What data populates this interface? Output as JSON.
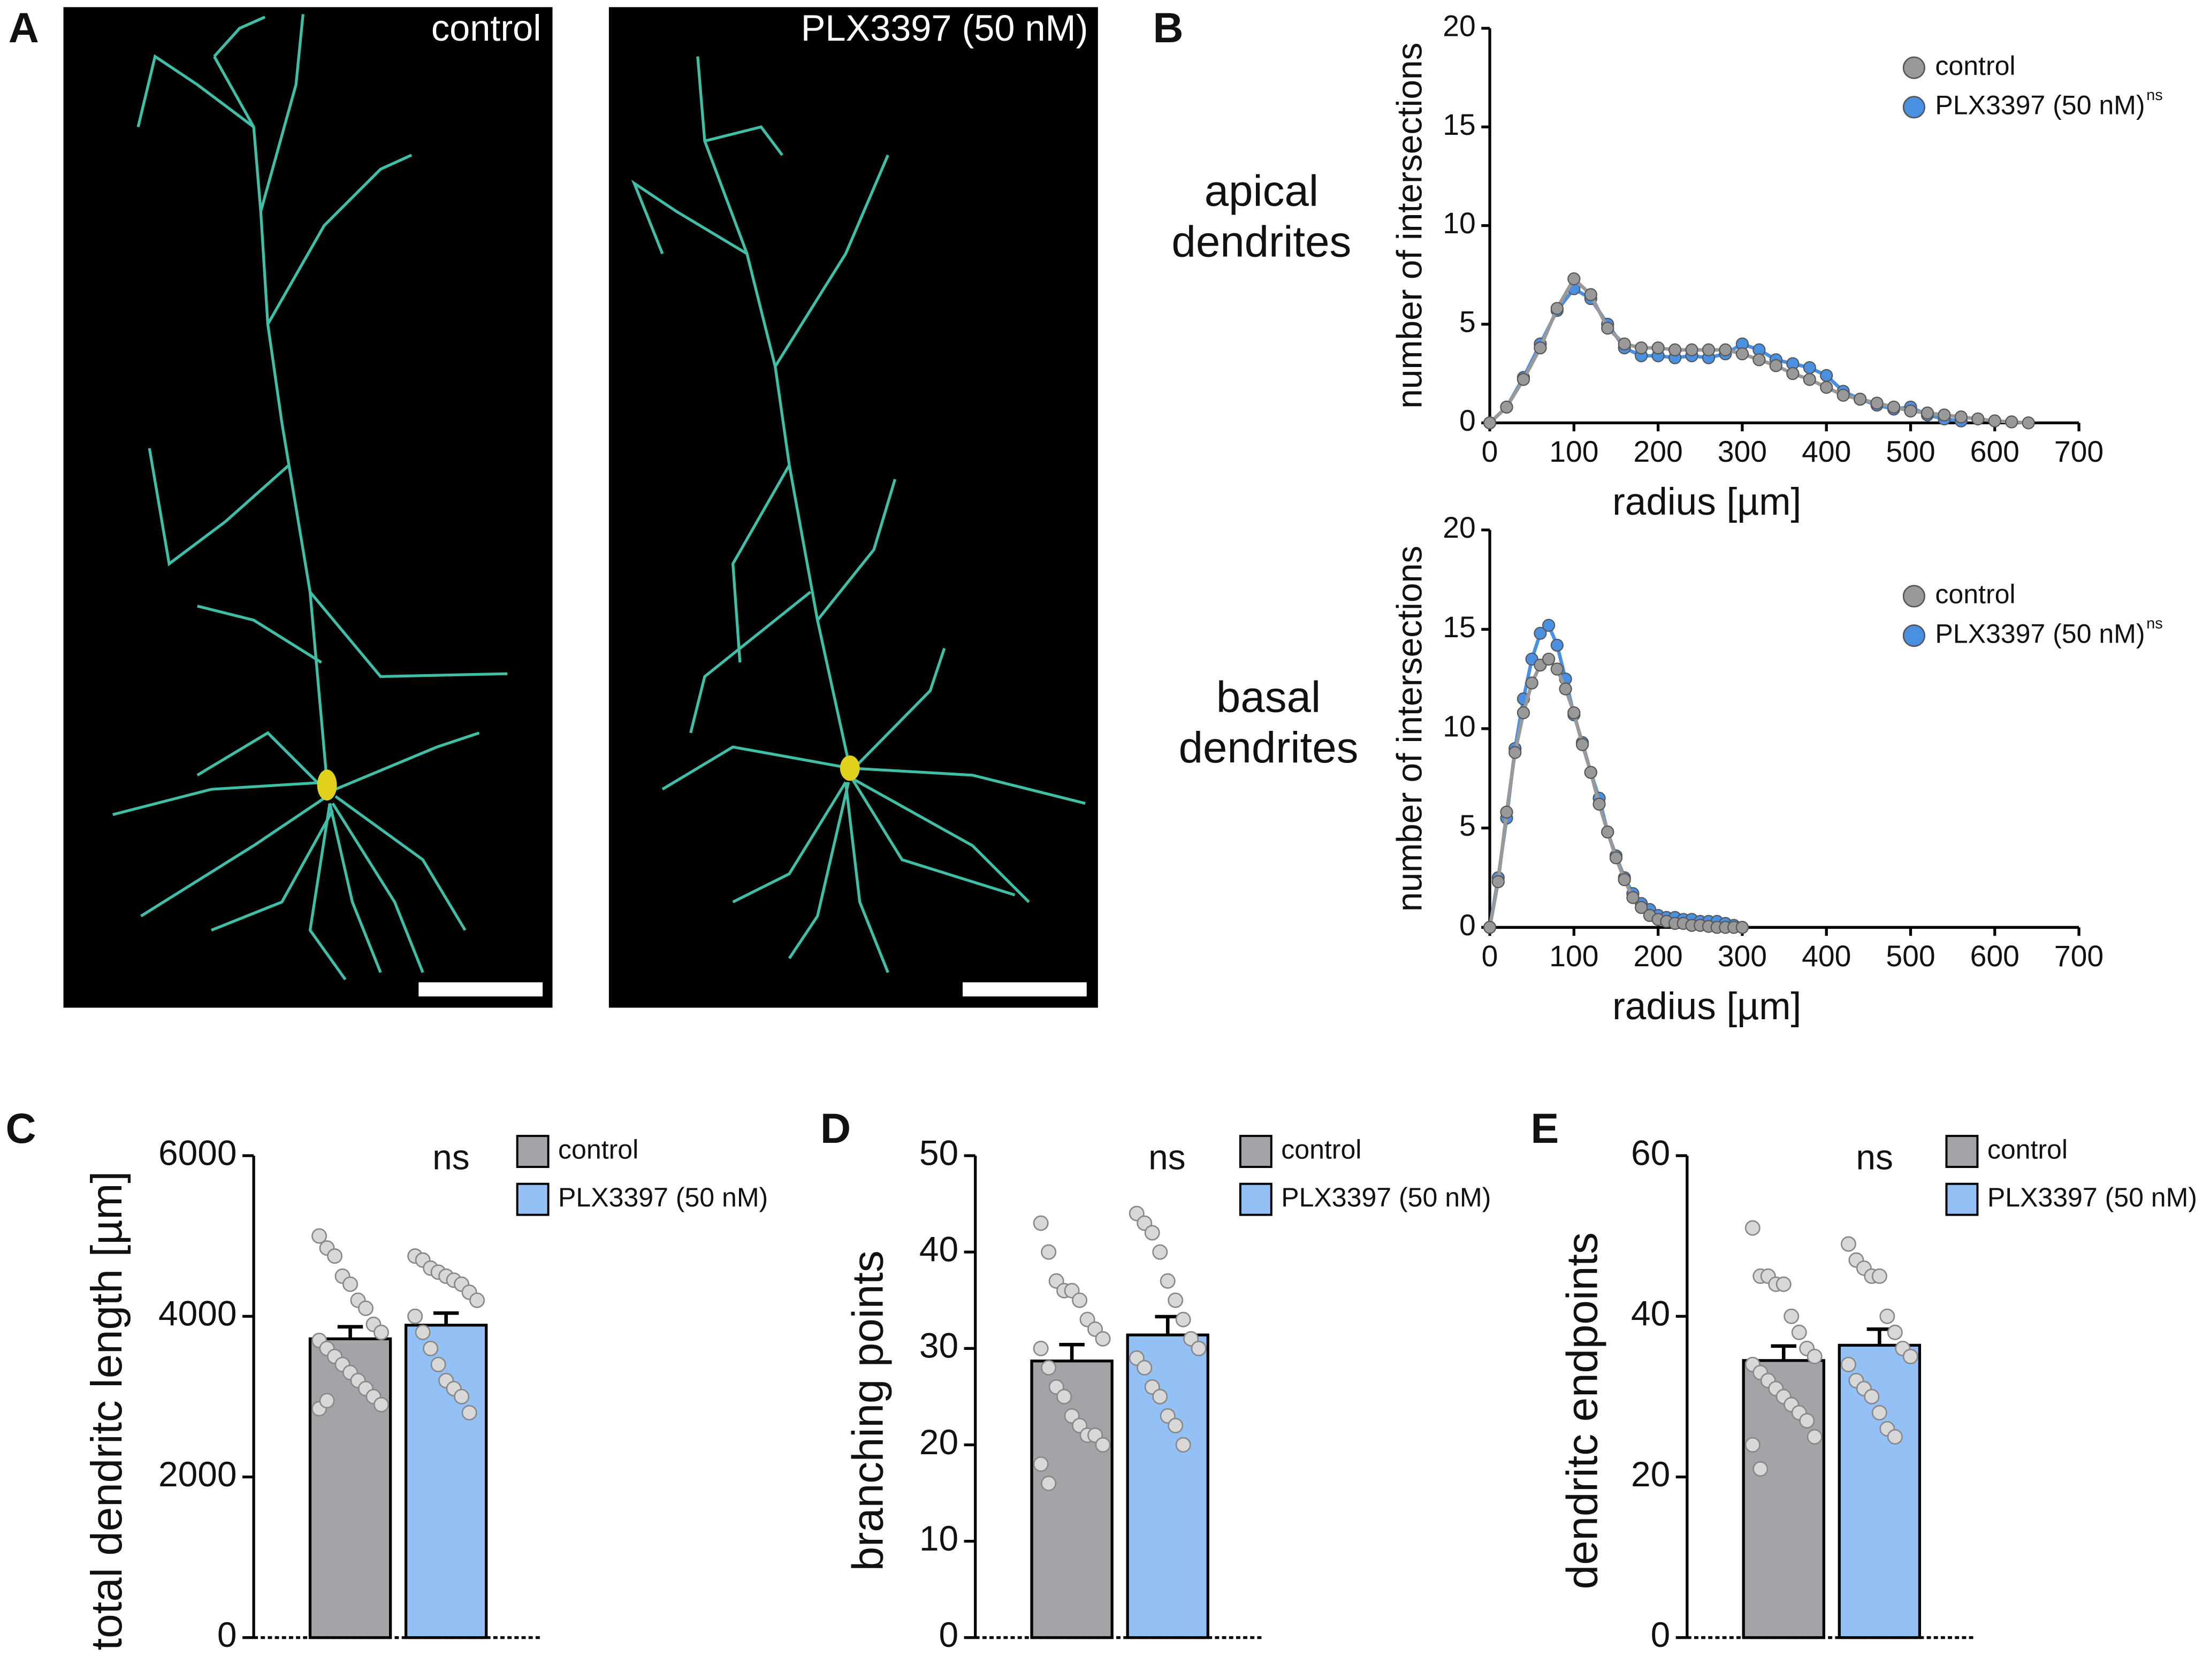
{
  "panel_labels": [
    "A",
    "B",
    "C",
    "D",
    "E"
  ],
  "images": [
    {
      "label": "control"
    },
    {
      "label": "PLX3397 (50 nM)"
    }
  ],
  "chart_data": [
    {
      "type": "line",
      "title": "apical dendrites",
      "x_label": "radius [µm]",
      "y_label": "number of intersections",
      "xlim": [
        0,
        700
      ],
      "xticks": [
        0,
        100,
        200,
        300,
        400,
        500,
        600,
        700
      ],
      "ylim": [
        0,
        20
      ],
      "yticks": [
        0,
        5,
        10,
        15,
        20
      ],
      "x": [
        0,
        20,
        40,
        60,
        80,
        100,
        120,
        140,
        160,
        180,
        200,
        220,
        240,
        260,
        280,
        300,
        320,
        340,
        360,
        380,
        400,
        420,
        440,
        460,
        480,
        500,
        520,
        540,
        560,
        580,
        600,
        620,
        640
      ],
      "annotation": "ns",
      "legend": "upper right",
      "series": [
        {
          "name": "control",
          "color": "#999999",
          "values": [
            0,
            0.8,
            2.2,
            3.8,
            5.8,
            7.3,
            6.5,
            4.8,
            4.0,
            3.8,
            3.8,
            3.7,
            3.7,
            3.7,
            3.7,
            3.5,
            3.2,
            2.9,
            2.5,
            2.2,
            1.8,
            1.4,
            1.2,
            1.0,
            0.8,
            0.6,
            0.5,
            0.4,
            0.3,
            0.2,
            0.1,
            0.05,
            0
          ]
        },
        {
          "name": "PLX3397 (50 nM)",
          "color": "#4a90e2",
          "values": [
            0,
            0.8,
            2.3,
            4.0,
            5.7,
            6.8,
            6.3,
            5.0,
            3.8,
            3.4,
            3.4,
            3.3,
            3.4,
            3.3,
            3.5,
            4.0,
            3.7,
            3.2,
            3.0,
            2.8,
            2.4,
            1.6,
            1.2,
            0.9,
            0.7,
            0.8,
            0.4,
            0.2,
            0.1,
            null,
            null,
            null,
            null
          ]
        }
      ]
    },
    {
      "type": "line",
      "title": "basal dendrites",
      "x_label": "radius [µm]",
      "y_label": "number of intersections",
      "xlim": [
        0,
        700
      ],
      "xticks": [
        0,
        100,
        200,
        300,
        400,
        500,
        600,
        700
      ],
      "ylim": [
        0,
        20
      ],
      "yticks": [
        0,
        5,
        10,
        15,
        20
      ],
      "x": [
        0,
        10,
        20,
        30,
        40,
        50,
        60,
        70,
        80,
        90,
        100,
        110,
        120,
        130,
        140,
        150,
        160,
        170,
        180,
        190,
        200,
        210,
        220,
        230,
        240,
        250,
        260,
        270,
        280,
        290,
        300
      ],
      "annotation": "ns",
      "legend": "upper right",
      "series": [
        {
          "name": "control",
          "color": "#999999",
          "values": [
            0,
            2.3,
            5.8,
            8.8,
            10.8,
            12.3,
            13.2,
            13.5,
            13.0,
            12.0,
            10.8,
            9.2,
            7.8,
            6.2,
            4.8,
            3.5,
            2.4,
            1.5,
            1.0,
            0.6,
            0.4,
            0.3,
            0.2,
            0.2,
            0.1,
            0.1,
            0.05,
            0,
            0,
            0,
            0
          ]
        },
        {
          "name": "PLX3397 (50 nM)",
          "color": "#4a90e2",
          "values": [
            0,
            2.5,
            5.5,
            9.0,
            11.5,
            13.5,
            14.8,
            15.2,
            14.2,
            12.5,
            10.7,
            9.3,
            7.8,
            6.5,
            4.8,
            3.6,
            2.5,
            1.7,
            1.2,
            0.9,
            0.6,
            0.5,
            0.5,
            0.4,
            0.4,
            0.3,
            0.3,
            0.3,
            0.2,
            0.1,
            0
          ]
        }
      ]
    },
    {
      "type": "bar",
      "y_label": "total dendritc length [µm]",
      "ylim": [
        0,
        6000
      ],
      "yticks": [
        0,
        2000,
        4000,
        6000
      ],
      "annotation": "ns",
      "legend": "upper right",
      "series": [
        {
          "name": "control",
          "color": "#a4a4a8",
          "values": [
            3720
          ],
          "errors": [
            150
          ],
          "points": [
            5000,
            4850,
            4750,
            4500,
            4400,
            4200,
            4100,
            3900,
            3800,
            3700,
            3600,
            3500,
            3400,
            3300,
            3200,
            3100,
            3000,
            2900,
            2850,
            2950
          ]
        },
        {
          "name": "PLX3397 (50 nM)",
          "color": "#93c1f5",
          "values": [
            3890
          ],
          "errors": [
            150
          ],
          "points": [
            4750,
            4700,
            4600,
            4550,
            4500,
            4450,
            4400,
            4300,
            4200,
            4000,
            3800,
            3600,
            3400,
            3200,
            3100,
            3000,
            2800
          ]
        }
      ]
    },
    {
      "type": "bar",
      "y_label": "branching points",
      "ylim": [
        0,
        50
      ],
      "yticks": [
        0,
        10,
        20,
        30,
        40,
        50
      ],
      "annotation": "ns",
      "legend": "upper right",
      "series": [
        {
          "name": "control",
          "color": "#a4a4a8",
          "values": [
            28.7
          ],
          "errors": [
            1.7
          ],
          "points": [
            43,
            40,
            37,
            36,
            36,
            35,
            33,
            32,
            31,
            30,
            28,
            26,
            25,
            23,
            22,
            21,
            21,
            20,
            18,
            16
          ]
        },
        {
          "name": "PLX3397 (50 nM)",
          "color": "#93c1f5",
          "values": [
            31.4
          ],
          "errors": [
            1.9
          ],
          "points": [
            44,
            43,
            42,
            40,
            37,
            35,
            33,
            31,
            30,
            29,
            28,
            26,
            25,
            23,
            22,
            20
          ]
        }
      ]
    },
    {
      "type": "bar",
      "y_label": "dendritc endpoints",
      "ylim": [
        0,
        60
      ],
      "yticks": [
        0,
        20,
        40,
        60
      ],
      "annotation": "ns",
      "legend": "upper right",
      "series": [
        {
          "name": "control",
          "color": "#a4a4a8",
          "values": [
            34.5
          ],
          "errors": [
            1.8
          ],
          "points": [
            51,
            45,
            45,
            44,
            44,
            40,
            38,
            36,
            35,
            34,
            33,
            32,
            31,
            30,
            29,
            28,
            27,
            25,
            24,
            21
          ]
        },
        {
          "name": "PLX3397 (50 nM)",
          "color": "#93c1f5",
          "values": [
            36.4
          ],
          "errors": [
            2.0
          ],
          "points": [
            49,
            47,
            46,
            45,
            45,
            40,
            38,
            36,
            35,
            34,
            32,
            31,
            30,
            28,
            26,
            25
          ]
        }
      ]
    }
  ]
}
